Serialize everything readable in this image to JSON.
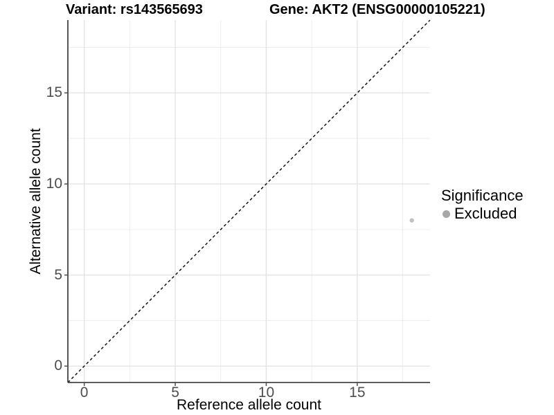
{
  "chart_data": {
    "type": "scatter",
    "title_segments": [
      "Variant: rs143565693",
      "Gene: AKT2 (ENSG00000105221)"
    ],
    "xlabel": "Reference allele count",
    "ylabel": "Alternative allele count",
    "xlim": [
      -0.9,
      19.0
    ],
    "ylim": [
      -0.9,
      19.0
    ],
    "x_major_ticks": [
      0,
      5,
      10,
      15
    ],
    "y_major_ticks": [
      0,
      5,
      10,
      15
    ],
    "x_minor_gridlines": [
      2.5,
      7.5,
      12.5,
      17.5
    ],
    "y_minor_gridlines": [
      2.5,
      7.5,
      12.5,
      17.5
    ],
    "grid": "major+minor",
    "points": [
      {
        "x": 18,
        "y": 8,
        "series": "Excluded",
        "color": "#c1c1c1",
        "radius": 3.2
      }
    ],
    "identity_line": {
      "slope": 1,
      "intercept": 0,
      "style": "dashed",
      "color": "#111111"
    },
    "legend": {
      "position": "right",
      "title": "Significance",
      "entries": [
        {
          "label": "Excluded",
          "color": "#a8a8a8",
          "marker": "circle"
        }
      ]
    }
  },
  "colors": {
    "background": "#ffffff",
    "axis_line": "#444444",
    "tick_mark": "#4d4d4d",
    "tick_label": "#4d4d4d",
    "grid_major": "#e4e4e4",
    "grid_minor": "#ededed"
  }
}
